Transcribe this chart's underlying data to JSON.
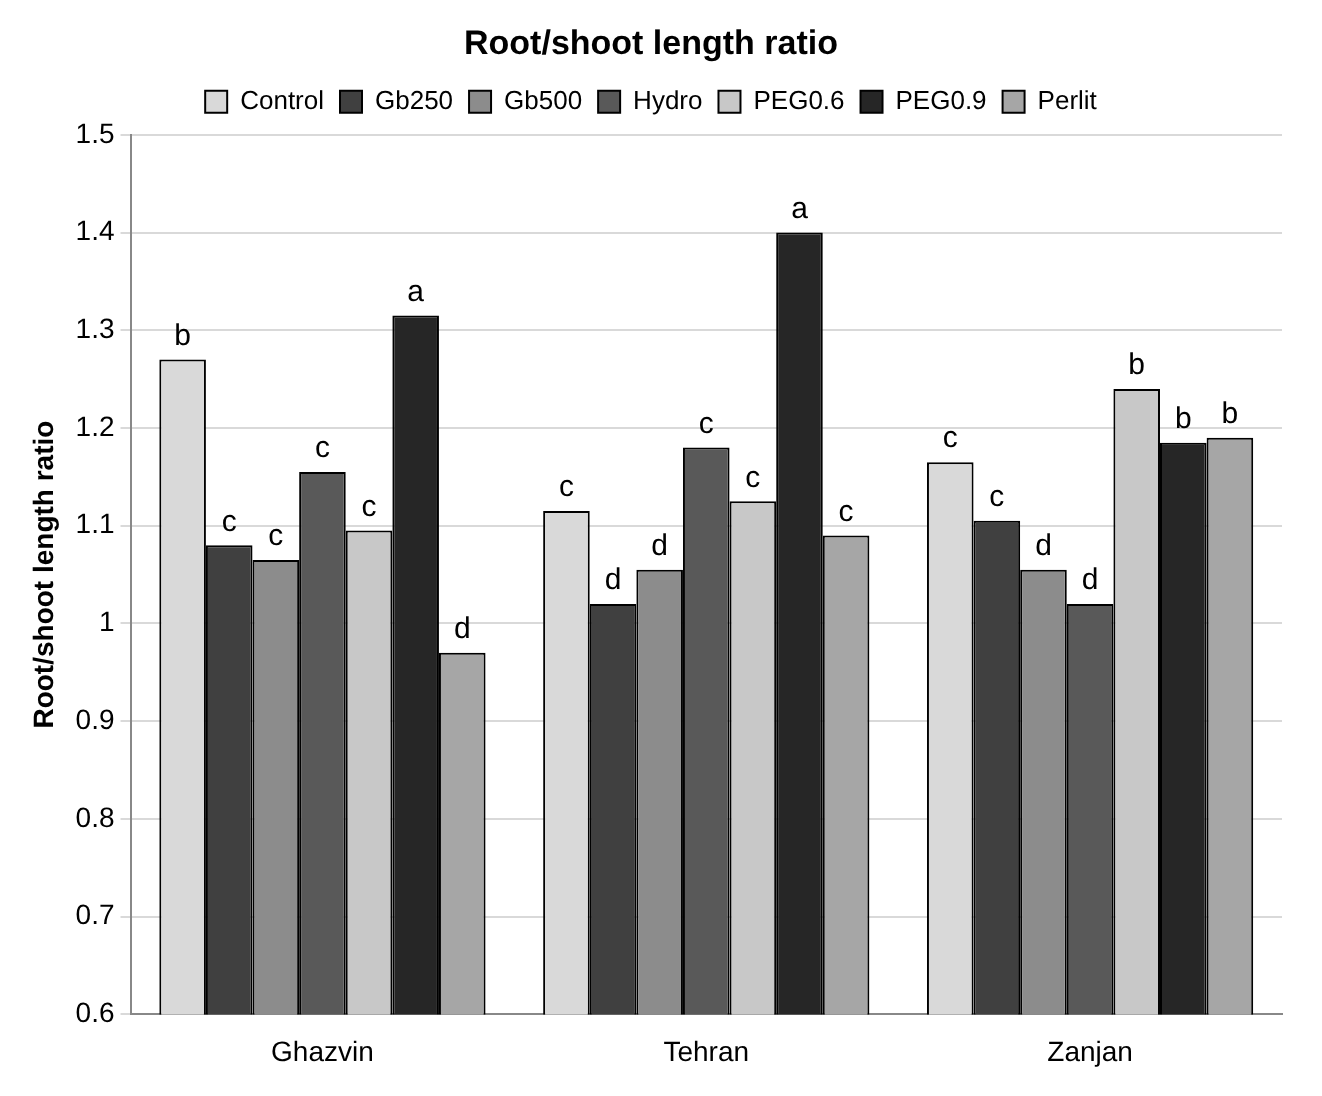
{
  "chart_data": {
    "type": "bar",
    "title": "Root/shoot length ratio",
    "ylabel": "Root/shoot length ratio",
    "categories": [
      "Ghazvin",
      "Tehran",
      "Zanjan"
    ],
    "series": [
      {
        "name": "Control",
        "color": "#d9d9d9",
        "values": [
          1.27,
          1.115,
          1.165
        ],
        "value_labels": [
          "b",
          "c",
          "c"
        ]
      },
      {
        "name": "Gb250",
        "color": "#404040",
        "values": [
          1.08,
          1.02,
          1.105
        ],
        "value_labels": [
          "c",
          "d",
          "c"
        ]
      },
      {
        "name": "Gb500",
        "color": "#8c8c8c",
        "values": [
          1.065,
          1.055,
          1.055
        ],
        "value_labels": [
          "c",
          "d",
          "d"
        ]
      },
      {
        "name": "Hydro",
        "color": "#595959",
        "values": [
          1.155,
          1.18,
          1.02
        ],
        "value_labels": [
          "c",
          "c",
          "d"
        ]
      },
      {
        "name": "PEG0.6",
        "color": "#c8c8c8",
        "values": [
          1.095,
          1.125,
          1.24
        ],
        "value_labels": [
          "c",
          "c",
          "b"
        ]
      },
      {
        "name": "PEG0.9",
        "color": "#262626",
        "values": [
          1.315,
          1.4,
          1.185
        ],
        "value_labels": [
          "a",
          "a",
          "b"
        ]
      },
      {
        "name": "Perlit",
        "color": "#a6a6a6",
        "values": [
          0.97,
          1.09,
          1.19
        ],
        "value_labels": [
          "d",
          "c",
          "b"
        ]
      }
    ],
    "ylim": [
      0.6,
      1.5
    ],
    "yticks": [
      0.6,
      0.7,
      0.8,
      0.9,
      1,
      1.1,
      1.2,
      1.3,
      1.4,
      1.5
    ],
    "grid": "y",
    "legend": "top"
  }
}
